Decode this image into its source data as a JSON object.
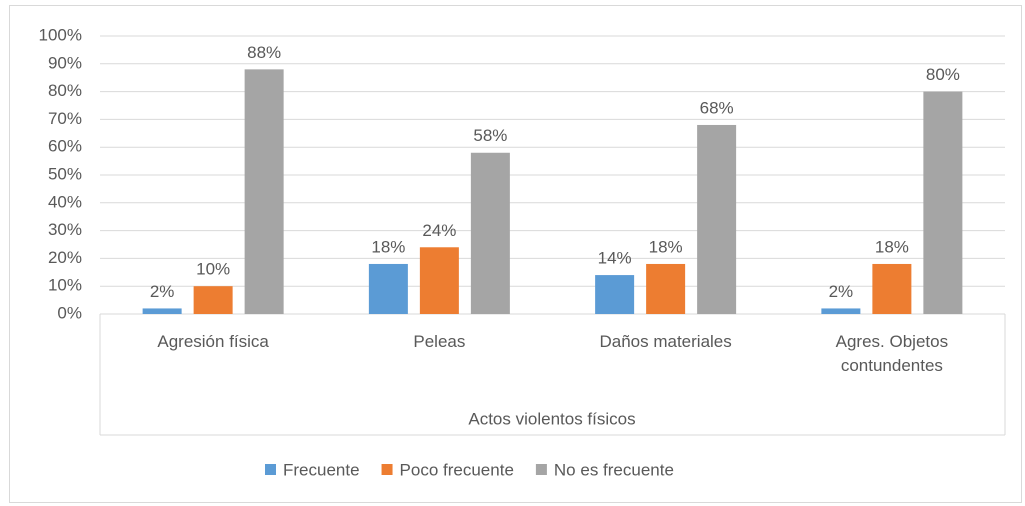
{
  "chart_data": {
    "type": "bar",
    "categories": [
      "Agresión física",
      "Peleas",
      "Daños materiales",
      "Agres. Objetos contundentes"
    ],
    "x_label": "Actos violentos físicos",
    "series": [
      {
        "name": "Frecuente",
        "color": "#5b9bd5",
        "values": [
          2,
          18,
          14,
          2
        ],
        "value_labels": [
          "2%",
          "18%",
          "14%",
          "2%"
        ]
      },
      {
        "name": "Poco frecuente",
        "color": "#ed7d31",
        "values": [
          10,
          24,
          18,
          18
        ],
        "value_labels": [
          "10%",
          "24%",
          "18%",
          "18%"
        ]
      },
      {
        "name": "No es frecuente",
        "color": "#a5a5a5",
        "values": [
          88,
          58,
          68,
          80
        ],
        "value_labels": [
          "88%",
          "58%",
          "68%",
          "80%"
        ]
      }
    ],
    "ylim": [
      0,
      100
    ],
    "yticks": [
      {
        "value": 0,
        "label": "0%"
      },
      {
        "value": 10,
        "label": "10%"
      },
      {
        "value": 20,
        "label": "20%"
      },
      {
        "value": 30,
        "label": "30%"
      },
      {
        "value": 40,
        "label": "40%"
      },
      {
        "value": 50,
        "label": "50%"
      },
      {
        "value": 60,
        "label": "60%"
      },
      {
        "value": 70,
        "label": "70%"
      },
      {
        "value": 80,
        "label": "80%"
      },
      {
        "value": 90,
        "label": "90%"
      },
      {
        "value": 100,
        "label": "100%"
      }
    ],
    "grid": true,
    "legend": "bottom"
  }
}
